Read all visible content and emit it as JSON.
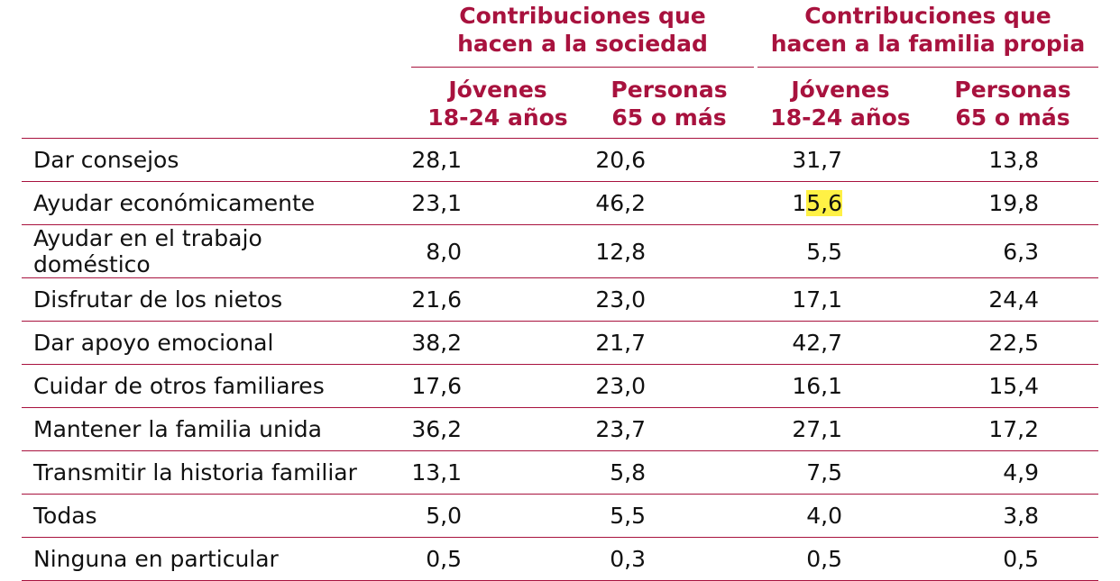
{
  "group_headers": [
    {
      "line1": "Contribuciones que",
      "line2": "hacen a la sociedad"
    },
    {
      "line1": "Contribuciones que",
      "line2": "hacen a la familia propia"
    }
  ],
  "sub_headers": [
    {
      "line1": "Jóvenes",
      "line2": "18-24 años"
    },
    {
      "line1": "Personas",
      "line2": "65 o más"
    },
    {
      "line1": "Jóvenes",
      "line2": "18-24 años"
    },
    {
      "line1": "Personas",
      "line2": "65 o más"
    }
  ],
  "rows": [
    {
      "label": "Dar consejos",
      "v": [
        "28,1",
        "20,6",
        "31,7",
        "13,8"
      ]
    },
    {
      "label": "Ayudar económicamente",
      "v": [
        "23,1",
        "46,2",
        "15,6",
        "19,8"
      ]
    },
    {
      "label": "Ayudar en el trabajo doméstico",
      "v": [
        "8,0",
        "12,8",
        "5,5",
        "6,3"
      ]
    },
    {
      "label": "Disfrutar de los nietos",
      "v": [
        "21,6",
        "23,0",
        "17,1",
        "24,4"
      ]
    },
    {
      "label": "Dar apoyo emocional",
      "v": [
        "38,2",
        "21,7",
        "42,7",
        "22,5"
      ]
    },
    {
      "label": "Cuidar de otros familiares",
      "v": [
        "17,6",
        "23,0",
        "16,1",
        "15,4"
      ]
    },
    {
      "label": "Mantener la familia unida",
      "v": [
        "36,2",
        "23,7",
        "27,1",
        "17,2"
      ]
    },
    {
      "label": "Transmitir la historia familiar",
      "v": [
        "13,1",
        "5,8",
        "7,5",
        "4,9"
      ]
    },
    {
      "label": "Todas",
      "v": [
        "5,0",
        "5,5",
        "4,0",
        "3,8"
      ]
    },
    {
      "label": "Ninguna en particular",
      "v": [
        "0,5",
        "0,3",
        "0,5",
        "0,5"
      ]
    }
  ],
  "highlight": {
    "row": 1,
    "col": 2,
    "plain_prefix": "1",
    "marked_part": "5,6",
    "color": "#fff145"
  },
  "colors": {
    "accent": "#a8123e",
    "text": "#111111"
  }
}
